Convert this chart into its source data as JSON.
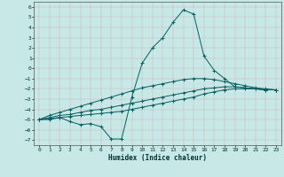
{
  "xlabel": "Humidex (Indice chaleur)",
  "background_color": "#c8e8e8",
  "grid_color": "#b0c8c8",
  "line_color": "#006060",
  "xlim": [
    -0.5,
    23.5
  ],
  "ylim": [
    -7.5,
    6.5
  ],
  "xticks": [
    0,
    1,
    2,
    3,
    4,
    5,
    6,
    7,
    8,
    9,
    10,
    11,
    12,
    13,
    14,
    15,
    16,
    17,
    18,
    19,
    20,
    21,
    22,
    23
  ],
  "yticks": [
    -7,
    -6,
    -5,
    -4,
    -3,
    -2,
    -1,
    0,
    1,
    2,
    3,
    4,
    5,
    6
  ],
  "curve1_x": [
    0,
    1,
    2,
    3,
    4,
    5,
    6,
    7,
    8,
    9,
    10,
    11,
    12,
    13,
    14,
    15,
    16,
    17,
    18,
    19,
    20,
    21,
    22,
    23
  ],
  "curve1_y": [
    -5.0,
    -5.0,
    -4.8,
    -5.2,
    -5.5,
    -5.4,
    -5.7,
    -6.9,
    -6.9,
    -2.8,
    0.5,
    2.0,
    3.0,
    4.5,
    5.7,
    5.3,
    1.2,
    -0.2,
    -1.0,
    -1.8,
    -1.9,
    -2.0,
    -2.1,
    -2.1
  ],
  "curve2_x": [
    0,
    1,
    2,
    3,
    4,
    5,
    6,
    7,
    8,
    9,
    10,
    11,
    12,
    13,
    14,
    15,
    16,
    17,
    18,
    19,
    20,
    21,
    22,
    23
  ],
  "curve2_y": [
    -5.0,
    -4.9,
    -4.8,
    -4.7,
    -4.6,
    -4.5,
    -4.4,
    -4.3,
    -4.2,
    -4.0,
    -3.8,
    -3.6,
    -3.4,
    -3.2,
    -3.0,
    -2.8,
    -2.5,
    -2.3,
    -2.1,
    -2.0,
    -2.0,
    -2.0,
    -2.1,
    -2.1
  ],
  "curve3_x": [
    0,
    1,
    2,
    3,
    4,
    5,
    6,
    7,
    8,
    9,
    10,
    11,
    12,
    13,
    14,
    15,
    16,
    17,
    18,
    19,
    20,
    21,
    22,
    23
  ],
  "curve3_y": [
    -5.0,
    -4.8,
    -4.6,
    -4.5,
    -4.3,
    -4.1,
    -4.0,
    -3.8,
    -3.6,
    -3.4,
    -3.2,
    -3.0,
    -2.8,
    -2.6,
    -2.4,
    -2.2,
    -2.0,
    -1.9,
    -1.8,
    -1.8,
    -1.9,
    -2.0,
    -2.1,
    -2.1
  ],
  "curve4_x": [
    0,
    1,
    2,
    3,
    4,
    5,
    6,
    7,
    8,
    9,
    10,
    11,
    12,
    13,
    14,
    15,
    16,
    17,
    18,
    19,
    20,
    21,
    22,
    23
  ],
  "curve4_y": [
    -5.0,
    -4.6,
    -4.3,
    -4.0,
    -3.7,
    -3.4,
    -3.1,
    -2.8,
    -2.5,
    -2.2,
    -1.9,
    -1.7,
    -1.5,
    -1.3,
    -1.1,
    -1.0,
    -1.0,
    -1.1,
    -1.3,
    -1.5,
    -1.7,
    -1.9,
    -2.0,
    -2.1
  ]
}
